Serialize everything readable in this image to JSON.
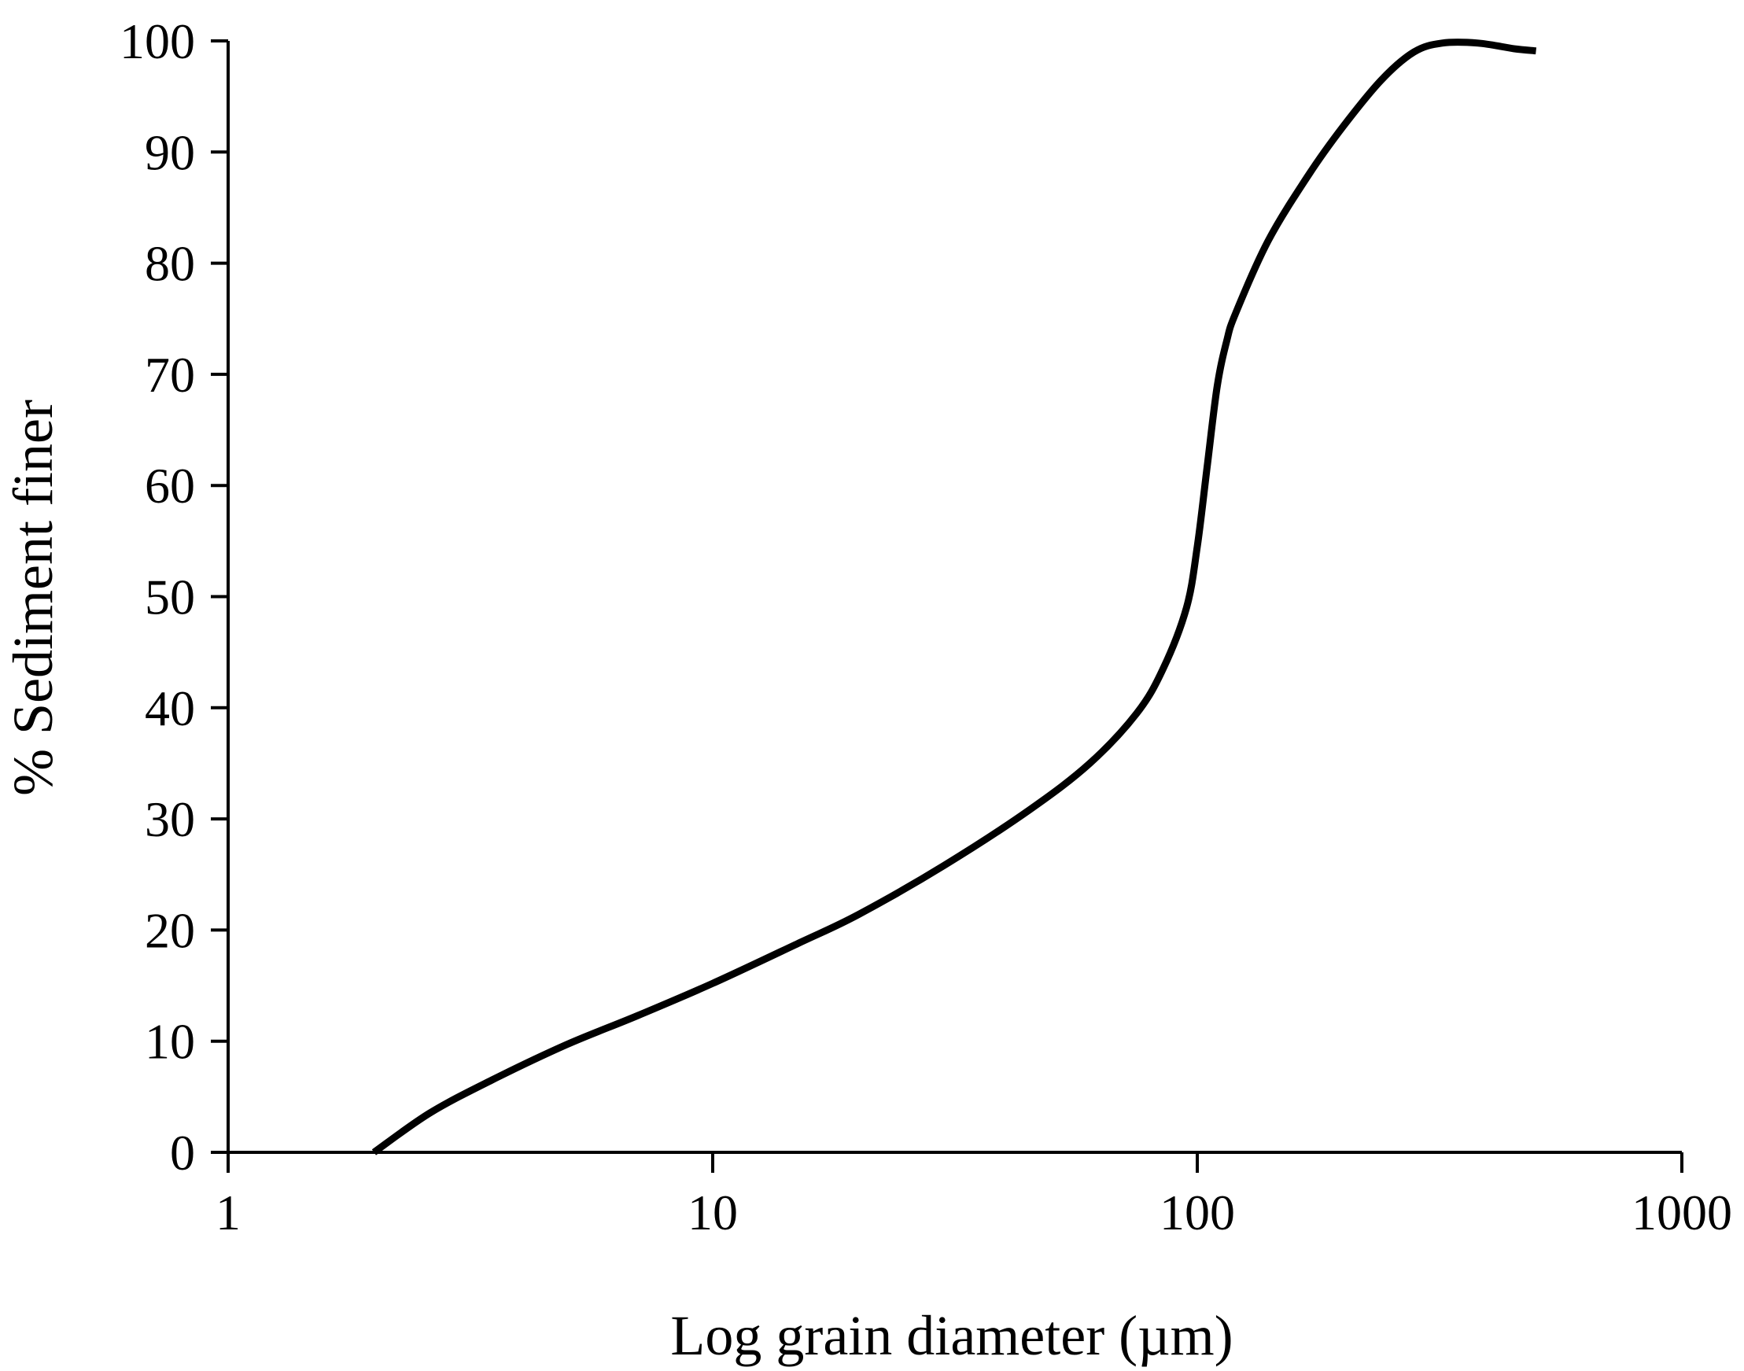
{
  "chart_data": {
    "type": "line",
    "title": "",
    "xlabel": "Log grain diameter (µm)",
    "ylabel": "% Sediment finer",
    "x_scale": "log",
    "xlim": [
      1,
      1000
    ],
    "ylim": [
      0,
      100
    ],
    "x_ticks": [
      1,
      10,
      100,
      1000
    ],
    "x_tick_labels": [
      "1",
      "10",
      "100",
      "1000"
    ],
    "y_ticks": [
      0,
      10,
      20,
      30,
      40,
      50,
      60,
      70,
      80,
      90,
      100
    ],
    "y_tick_labels": [
      "0",
      "10",
      "20",
      "30",
      "40",
      "50",
      "60",
      "70",
      "80",
      "90",
      "100"
    ],
    "grid": false,
    "legend": "none",
    "line_color": "#000000",
    "series": [
      {
        "x": [
          2.0,
          2.6,
          3.5,
          5,
          7,
          10,
          15,
          20,
          30,
          45,
          60,
          75,
          85,
          95,
          100,
          105,
          110,
          115,
          120,
          140,
          170,
          200,
          240,
          280,
          320,
          380,
          450,
          500
        ],
        "y": [
          0,
          3.5,
          6.5,
          9.7,
          12.3,
          15.2,
          18.8,
          21.4,
          25.8,
          30.8,
          35,
          39.5,
          43.5,
          49,
          54.5,
          62,
          69,
          73,
          75.5,
          82,
          88,
          92.3,
          96.5,
          99,
          99.8,
          99.8,
          99.3,
          99.1
        ]
      }
    ]
  }
}
